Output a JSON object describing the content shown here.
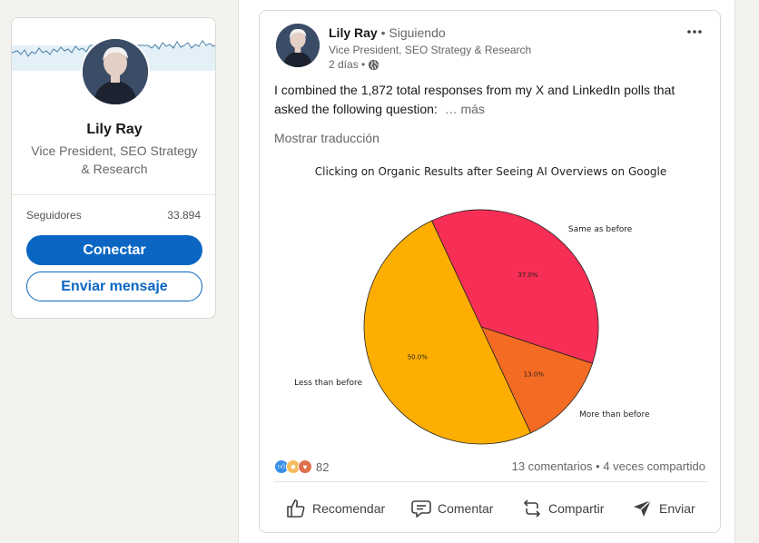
{
  "profile": {
    "name": "Lily Ray",
    "headline": "Vice President, SEO Strategy & Research",
    "stats": {
      "label": "Seguidores",
      "value": "33.894"
    },
    "connect_label": "Conectar",
    "message_label": "Enviar mensaje"
  },
  "post": {
    "author": "Lily Ray",
    "follow_status": "• Siguiendo",
    "headline": "Vice President, SEO Strategy & Research",
    "time": "2 días •",
    "text": "I combined the 1,872 total responses from my X and LinkedIn polls that asked the following question:",
    "see_more": "… más",
    "translate_label": "Mostrar traducción",
    "reaction_count": "82",
    "social_counts": "13 comentarios • 4 veces compartido",
    "actions": {
      "like": "Recomendar",
      "comment": "Comentar",
      "share": "Compartir",
      "send": "Enviar"
    }
  },
  "icons": {
    "more": "ellipsis-icon",
    "visibility": "globe-icon",
    "like": "thumbs-up-icon",
    "comment": "comment-icon",
    "share": "repost-icon",
    "send": "send-icon"
  },
  "colors": {
    "brand": "#0a66c2",
    "slice_same": "#f72e55",
    "slice_more": "#f46b23",
    "slice_less": "#fdae00"
  },
  "chart_data": {
    "type": "pie",
    "title": "Clicking on Organic Results after Seeing AI Overviews on Google",
    "categories": [
      "Same as before",
      "More than before",
      "Less than before"
    ],
    "values": [
      37.0,
      13.0,
      50.0
    ],
    "value_labels": [
      "37.0%",
      "13.0%",
      "50.0%"
    ],
    "colors": [
      "#f72e55",
      "#f46b23",
      "#fdae00"
    ]
  }
}
